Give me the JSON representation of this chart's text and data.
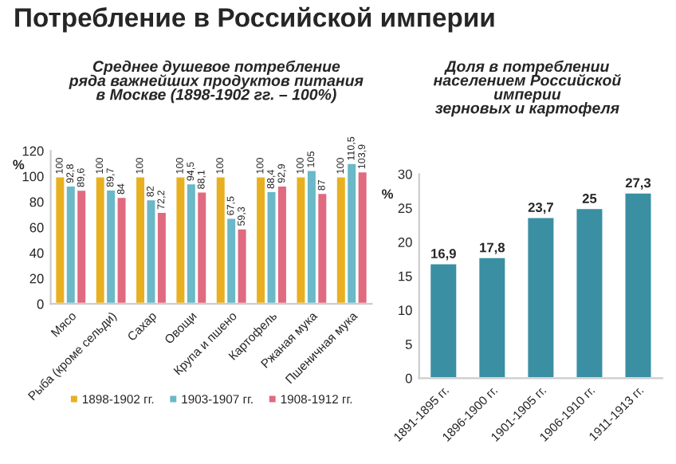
{
  "chart_data": [
    {
      "type": "bar",
      "title": "Среднее душевое потребление ряда важнейших продуктов питания в Москве (1898-1902 гг. – 100%)",
      "ylabel": "%",
      "annotations": [
        "Потребление в Российской империи"
      ],
      "categories": [
        "Мясо",
        "Рыба (кроме сельди)",
        "Сахар",
        "Овощи",
        "Крупа и пшено",
        "Картофель",
        "Ржаная мука",
        "Пшеничная мука"
      ],
      "series": [
        {
          "name": "1898-1902 гг.",
          "color": "#e8b020",
          "values": [
            100,
            100,
            100,
            100,
            100,
            100,
            100,
            100
          ],
          "value_labels": [
            "100",
            "100",
            "100",
            "100",
            "100",
            "100",
            "100",
            "100"
          ]
        },
        {
          "name": "1903-1907 гг.",
          "color": "#6ab8c8",
          "values": [
            92.8,
            89.7,
            82,
            94.5,
            67.5,
            88.4,
            105,
            110.5
          ],
          "value_labels": [
            "92,8",
            "89,7",
            "82",
            "94,5",
            "67,5",
            "88,4",
            "105",
            "110,5"
          ]
        },
        {
          "name": "1908-1912 гг.",
          "color": "#e06a80",
          "values": [
            89.6,
            84,
            72.2,
            88.1,
            59.3,
            92.9,
            87,
            103.9
          ],
          "value_labels": [
            "89,6",
            "84",
            "72,2",
            "88,1",
            "59,3",
            "92,9",
            "87",
            "103,9"
          ]
        }
      ],
      "ylim": [
        0,
        120
      ],
      "yticks": [
        0,
        20,
        40,
        60,
        80,
        100,
        120
      ],
      "legend": "bottom",
      "grid": false
    },
    {
      "type": "bar",
      "title": "Доля в потреблении населением Российской империи зерновых и картофеля",
      "ylabel": "%",
      "categories": [
        "1891-1895 гг.",
        "1896-1900 гг.",
        "1901-1905 гг.",
        "1906-1910 гг.",
        "1911-1913 гг."
      ],
      "series": [
        {
          "color": "#3a8fa3",
          "values": [
            16.9,
            17.8,
            23.7,
            25,
            27.3
          ],
          "value_labels": [
            "16,9",
            "17,8",
            "23,7",
            "25",
            "27,3"
          ]
        }
      ],
      "ylim": [
        0,
        30
      ],
      "yticks": [
        0,
        5,
        10,
        15,
        20,
        25,
        30
      ],
      "legend": false,
      "grid": false
    }
  ]
}
